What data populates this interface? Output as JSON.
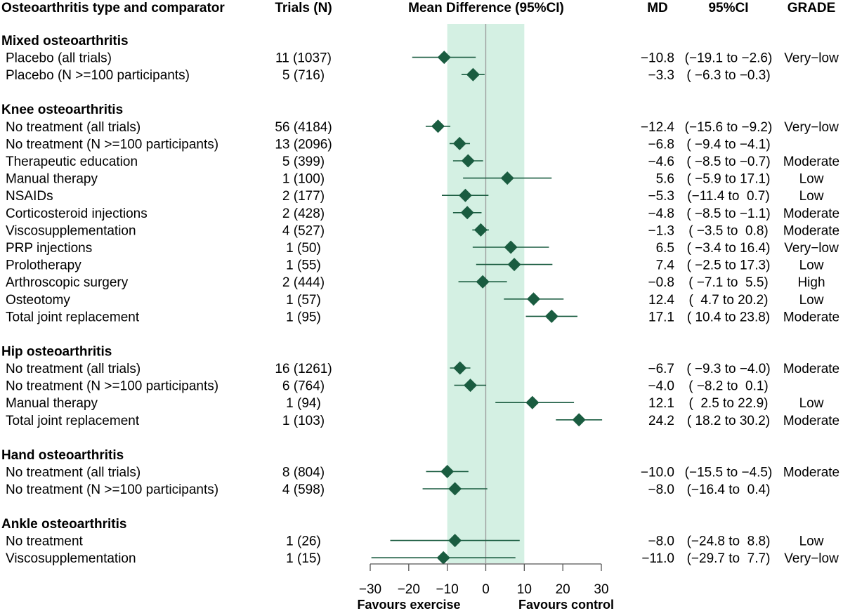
{
  "headers": {
    "comparator": "Osteoarthritis type and comparator",
    "trials": "Trials (N)",
    "forest": "Mean Difference (95%CI)",
    "md": "MD",
    "ci": "95%CI",
    "grade": "GRADE"
  },
  "footer": {
    "favours_left": "Favours exercise",
    "favours_right": "Favours control"
  },
  "colors": {
    "marker": "#1a5c40",
    "band": "#d4f0e3",
    "zero_line": "#9a9a9a",
    "axis": "#555555"
  },
  "chart_data": {
    "type": "forest",
    "xlim": [
      -30,
      30
    ],
    "xticks": [
      -30,
      -20,
      -10,
      0,
      10,
      20,
      30
    ],
    "xtick_labels": [
      "−30",
      "−20",
      "−10",
      "0",
      "10",
      "20",
      "30"
    ],
    "band": [
      -10,
      10
    ],
    "groups": [
      {
        "name": "Mixed osteoarthritis",
        "rows": [
          {
            "label": "Placebo (all trials)",
            "trials": "11 (1037)",
            "md": -10.8,
            "lo": -19.1,
            "hi": -2.6,
            "md_text": "−10.8",
            "ci_text": "(−19.1 to −2.6)",
            "grade": "Very−low"
          },
          {
            "label": "Placebo (N >=100 participants)",
            "trials": "5 (716)",
            "md": -3.3,
            "lo": -6.3,
            "hi": -0.3,
            "md_text": "−3.3",
            "ci_text": "( −6.3 to −0.3)",
            "grade": ""
          }
        ]
      },
      {
        "name": "Knee osteoarthritis",
        "rows": [
          {
            "label": "No treatment (all trials)",
            "trials": "56 (4184)",
            "md": -12.4,
            "lo": -15.6,
            "hi": -9.2,
            "md_text": "−12.4",
            "ci_text": "(−15.6 to −9.2)",
            "grade": "Very−low"
          },
          {
            "label": "No treatment (N >=100 participants)",
            "trials": "13 (2096)",
            "md": -6.8,
            "lo": -9.4,
            "hi": -4.1,
            "md_text": "−6.8",
            "ci_text": "( −9.4 to −4.1)",
            "grade": ""
          },
          {
            "label": "Therapeutic education",
            "trials": "5 (399)",
            "md": -4.6,
            "lo": -8.5,
            "hi": -0.7,
            "md_text": "−4.6",
            "ci_text": "( −8.5 to −0.7)",
            "grade": "Moderate"
          },
          {
            "label": "Manual therapy",
            "trials": "1 (100)",
            "md": 5.6,
            "lo": -5.9,
            "hi": 17.1,
            "md_text": "5.6",
            "ci_text": "( −5.9 to 17.1)",
            "grade": "Low"
          },
          {
            "label": "NSAIDs",
            "trials": "2 (177)",
            "md": -5.3,
            "lo": -11.4,
            "hi": 0.7,
            "md_text": "−5.3",
            "ci_text": "(−11.4 to  0.7)",
            "grade": "Low"
          },
          {
            "label": "Corticosteroid injections",
            "trials": "2 (428)",
            "md": -4.8,
            "lo": -8.5,
            "hi": -1.1,
            "md_text": "−4.8",
            "ci_text": "( −8.5 to −1.1)",
            "grade": "Moderate"
          },
          {
            "label": "Viscosupplementation",
            "trials": "4 (527)",
            "md": -1.3,
            "lo": -3.5,
            "hi": 0.8,
            "md_text": "−1.3",
            "ci_text": "( −3.5 to  0.8)",
            "grade": "Moderate"
          },
          {
            "label": "PRP injections",
            "trials": "1 (50)",
            "md": 6.5,
            "lo": -3.4,
            "hi": 16.4,
            "md_text": "6.5",
            "ci_text": "( −3.4 to 16.4)",
            "grade": "Very−low"
          },
          {
            "label": "Prolotherapy",
            "trials": "1 (55)",
            "md": 7.4,
            "lo": -2.5,
            "hi": 17.3,
            "md_text": "7.4",
            "ci_text": "( −2.5 to 17.3)",
            "grade": "Low"
          },
          {
            "label": "Arthroscopic surgery",
            "trials": "2 (444)",
            "md": -0.8,
            "lo": -7.1,
            "hi": 5.5,
            "md_text": "−0.8",
            "ci_text": "( −7.1 to  5.5)",
            "grade": "High"
          },
          {
            "label": "Osteotomy",
            "trials": "1 (57)",
            "md": 12.4,
            "lo": 4.7,
            "hi": 20.2,
            "md_text": "12.4",
            "ci_text": "(  4.7 to 20.2)",
            "grade": "Low"
          },
          {
            "label": "Total joint replacement",
            "trials": "1 (95)",
            "md": 17.1,
            "lo": 10.4,
            "hi": 23.8,
            "md_text": "17.1",
            "ci_text": "( 10.4 to 23.8)",
            "grade": "Moderate"
          }
        ]
      },
      {
        "name": "Hip osteoarthritis",
        "rows": [
          {
            "label": "No treatment (all trials)",
            "trials": "16 (1261)",
            "md": -6.7,
            "lo": -9.3,
            "hi": -4.0,
            "md_text": "−6.7",
            "ci_text": "( −9.3 to −4.0)",
            "grade": "Moderate"
          },
          {
            "label": "No treatment (N >=100 participants)",
            "trials": "6 (764)",
            "md": -4.0,
            "lo": -8.2,
            "hi": 0.1,
            "md_text": "−4.0",
            "ci_text": "( −8.2 to  0.1)",
            "grade": ""
          },
          {
            "label": "Manual therapy",
            "trials": "1 (94)",
            "md": 12.1,
            "lo": 2.5,
            "hi": 22.9,
            "md_text": "12.1",
            "ci_text": "(  2.5 to 22.9)",
            "grade": "Low"
          },
          {
            "label": "Total joint replacement",
            "trials": "1 (103)",
            "md": 24.2,
            "lo": 18.2,
            "hi": 30.2,
            "md_text": "24.2",
            "ci_text": "( 18.2 to 30.2)",
            "grade": "Moderate"
          }
        ]
      },
      {
        "name": "Hand osteoarthritis",
        "rows": [
          {
            "label": "No treatment (all trials)",
            "trials": "8 (804)",
            "md": -10.0,
            "lo": -15.5,
            "hi": -4.5,
            "md_text": "−10.0",
            "ci_text": "(−15.5 to −4.5)",
            "grade": "Moderate"
          },
          {
            "label": "No treatment (N >=100 participants)",
            "trials": "4 (598)",
            "md": -8.0,
            "lo": -16.4,
            "hi": 0.4,
            "md_text": "−8.0",
            "ci_text": "(−16.4 to  0.4)",
            "grade": ""
          }
        ]
      },
      {
        "name": "Ankle osteoarthritis",
        "rows": [
          {
            "label": "No treatment",
            "trials": "1 (26)",
            "md": -8.0,
            "lo": -24.8,
            "hi": 8.8,
            "md_text": "−8.0",
            "ci_text": "(−24.8 to  8.8)",
            "grade": "Low"
          },
          {
            "label": "Viscosupplementation",
            "trials": "1 (15)",
            "md": -11.0,
            "lo": -29.7,
            "hi": 7.7,
            "md_text": "−11.0",
            "ci_text": "(−29.7 to  7.7)",
            "grade": "Very−low"
          }
        ]
      }
    ]
  }
}
